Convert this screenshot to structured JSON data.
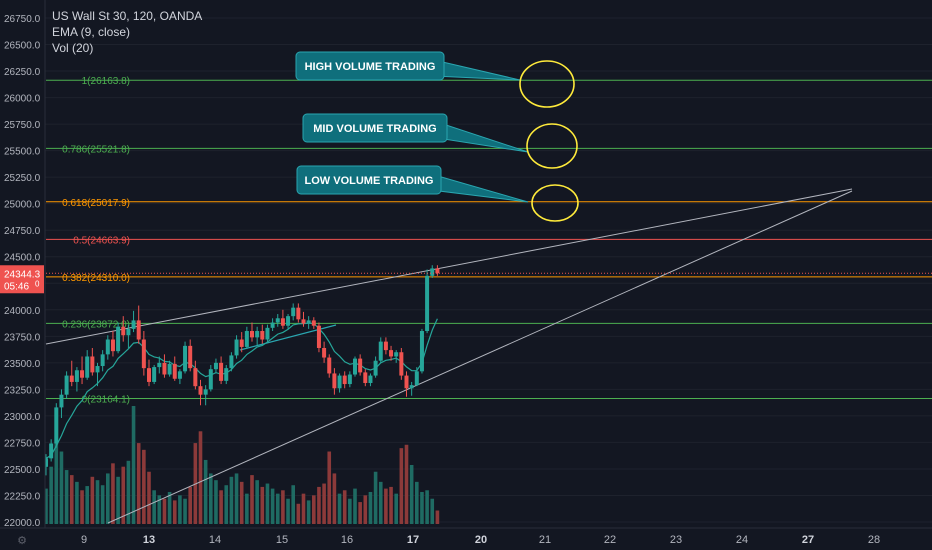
{
  "legend": {
    "symbol": "US Wall St 30, 120, OANDA",
    "ema": "EMA (9, close)",
    "vol": "Vol (20)"
  },
  "price_tag": {
    "price": "24344.3",
    "countdown": "05:46",
    "sub": "0"
  },
  "annotations": [
    {
      "label": "HIGH VOLUME TRADING"
    },
    {
      "label": "MID VOLUME TRADING"
    },
    {
      "label": "LOW VOLUME TRADING"
    }
  ],
  "colors": {
    "background": "#131722",
    "up": "#26a69a",
    "down": "#ef5350",
    "fib_green": "#4caf50",
    "fib_orange": "#ff9800",
    "fib_red": "#ef5350",
    "callout": "#0f6f7c",
    "circle": "#ffeb3b",
    "trendline": "#b2b5be"
  },
  "chart_data": {
    "type": "candlestick",
    "title": "US Wall St 30, 120, OANDA",
    "xlabel": "",
    "ylabel": "",
    "ylim": [
      22000,
      26750
    ],
    "y_ticks": [
      22000,
      22250,
      22500,
      22750,
      23000,
      23250,
      23500,
      23750,
      24000,
      24250,
      24500,
      24750,
      25000,
      25250,
      25500,
      25750,
      26000,
      26250,
      26500,
      26750
    ],
    "y_tick_labels": [
      "22000.0",
      "22250.0",
      "22500.0",
      "22750.0",
      "23000.0",
      "23250.0",
      "23500.0",
      "23750.0",
      "24000.0",
      "24250.0",
      "24500.0",
      "24750.0",
      "25000.0",
      "25250.0",
      "25500.0",
      "25750.0",
      "26000.0",
      "26250.0",
      "26500.0",
      "26750.0"
    ],
    "x_ticks": [
      "9",
      "13",
      "14",
      "15",
      "16",
      "17",
      "20",
      "21",
      "22",
      "23",
      "24",
      "27",
      "28"
    ],
    "fib_levels": [
      {
        "label": "1(26163.8)",
        "value": 26163.8,
        "color": "#4caf50"
      },
      {
        "label": "0.786(25521.8)",
        "value": 25521.8,
        "color": "#4caf50"
      },
      {
        "label": "0.618(25017.9)",
        "value": 25017.9,
        "color": "#ff9800"
      },
      {
        "label": "0.5(24663.9)",
        "value": 24663.9,
        "color": "#ef5350"
      },
      {
        "label": "0.382(24310.0)",
        "value": 24310.0,
        "color": "#ff9800"
      },
      {
        "label": "0.236(23872.0)",
        "value": 23872.0,
        "color": "#4caf50"
      },
      {
        "label": "0(23164.1)",
        "value": 23164.1,
        "color": "#4caf50"
      }
    ],
    "last_price": 24344.3,
    "candles": [
      {
        "o": 22520,
        "h": 22640,
        "l": 22440,
        "c": 22600
      },
      {
        "o": 22600,
        "h": 22780,
        "l": 22570,
        "c": 22740
      },
      {
        "o": 22740,
        "h": 23120,
        "l": 22700,
        "c": 23080
      },
      {
        "o": 23080,
        "h": 23250,
        "l": 22980,
        "c": 23200
      },
      {
        "o": 23200,
        "h": 23420,
        "l": 23160,
        "c": 23380
      },
      {
        "o": 23380,
        "h": 23520,
        "l": 23280,
        "c": 23320
      },
      {
        "o": 23320,
        "h": 23460,
        "l": 23230,
        "c": 23430
      },
      {
        "o": 23430,
        "h": 23560,
        "l": 23300,
        "c": 23360
      },
      {
        "o": 23360,
        "h": 23620,
        "l": 23340,
        "c": 23560
      },
      {
        "o": 23560,
        "h": 23640,
        "l": 23380,
        "c": 23410
      },
      {
        "o": 23410,
        "h": 23500,
        "l": 23280,
        "c": 23470
      },
      {
        "o": 23470,
        "h": 23620,
        "l": 23420,
        "c": 23580
      },
      {
        "o": 23580,
        "h": 23760,
        "l": 23530,
        "c": 23720
      },
      {
        "o": 23720,
        "h": 23800,
        "l": 23560,
        "c": 23610
      },
      {
        "o": 23610,
        "h": 23880,
        "l": 23590,
        "c": 23840
      },
      {
        "o": 23840,
        "h": 23940,
        "l": 23700,
        "c": 23760
      },
      {
        "o": 23760,
        "h": 23860,
        "l": 23640,
        "c": 23820
      },
      {
        "o": 23820,
        "h": 23990,
        "l": 23790,
        "c": 23900
      },
      {
        "o": 23900,
        "h": 24040,
        "l": 23680,
        "c": 23720
      },
      {
        "o": 23720,
        "h": 23800,
        "l": 23380,
        "c": 23450
      },
      {
        "o": 23450,
        "h": 23530,
        "l": 23280,
        "c": 23320
      },
      {
        "o": 23320,
        "h": 23480,
        "l": 23300,
        "c": 23460
      },
      {
        "o": 23460,
        "h": 23560,
        "l": 23400,
        "c": 23500
      },
      {
        "o": 23500,
        "h": 23580,
        "l": 23360,
        "c": 23390
      },
      {
        "o": 23390,
        "h": 23520,
        "l": 23370,
        "c": 23490
      },
      {
        "o": 23490,
        "h": 23560,
        "l": 23330,
        "c": 23350
      },
      {
        "o": 23350,
        "h": 23440,
        "l": 23300,
        "c": 23420
      },
      {
        "o": 23420,
        "h": 23700,
        "l": 23400,
        "c": 23660
      },
      {
        "o": 23660,
        "h": 23720,
        "l": 23420,
        "c": 23450
      },
      {
        "o": 23450,
        "h": 23520,
        "l": 23250,
        "c": 23280
      },
      {
        "o": 23280,
        "h": 23340,
        "l": 23100,
        "c": 23200
      },
      {
        "o": 23200,
        "h": 23290,
        "l": 23100,
        "c": 23250
      },
      {
        "o": 23250,
        "h": 23480,
        "l": 23230,
        "c": 23440
      },
      {
        "o": 23440,
        "h": 23540,
        "l": 23400,
        "c": 23500
      },
      {
        "o": 23500,
        "h": 23560,
        "l": 23300,
        "c": 23330
      },
      {
        "o": 23330,
        "h": 23480,
        "l": 23300,
        "c": 23450
      },
      {
        "o": 23450,
        "h": 23600,
        "l": 23420,
        "c": 23570
      },
      {
        "o": 23570,
        "h": 23760,
        "l": 23540,
        "c": 23720
      },
      {
        "o": 23720,
        "h": 23790,
        "l": 23600,
        "c": 23650
      },
      {
        "o": 23650,
        "h": 23840,
        "l": 23630,
        "c": 23800
      },
      {
        "o": 23800,
        "h": 23880,
        "l": 23700,
        "c": 23740
      },
      {
        "o": 23740,
        "h": 23840,
        "l": 23660,
        "c": 23800
      },
      {
        "o": 23800,
        "h": 23860,
        "l": 23680,
        "c": 23720
      },
      {
        "o": 23720,
        "h": 23860,
        "l": 23700,
        "c": 23830
      },
      {
        "o": 23830,
        "h": 23920,
        "l": 23800,
        "c": 23880
      },
      {
        "o": 23880,
        "h": 23960,
        "l": 23840,
        "c": 23920
      },
      {
        "o": 23920,
        "h": 24000,
        "l": 23820,
        "c": 23850
      },
      {
        "o": 23850,
        "h": 23960,
        "l": 23820,
        "c": 23940
      },
      {
        "o": 23940,
        "h": 24060,
        "l": 23900,
        "c": 24020
      },
      {
        "o": 24020,
        "h": 24060,
        "l": 23880,
        "c": 23910
      },
      {
        "o": 23910,
        "h": 23980,
        "l": 23840,
        "c": 23870
      },
      {
        "o": 23870,
        "h": 23940,
        "l": 23820,
        "c": 23900
      },
      {
        "o": 23900,
        "h": 23930,
        "l": 23820,
        "c": 23850
      },
      {
        "o": 23850,
        "h": 23880,
        "l": 23600,
        "c": 23640
      },
      {
        "o": 23640,
        "h": 23700,
        "l": 23500,
        "c": 23550
      },
      {
        "o": 23550,
        "h": 23580,
        "l": 23360,
        "c": 23400
      },
      {
        "o": 23400,
        "h": 23450,
        "l": 23200,
        "c": 23260
      },
      {
        "o": 23260,
        "h": 23400,
        "l": 23220,
        "c": 23380
      },
      {
        "o": 23380,
        "h": 23420,
        "l": 23260,
        "c": 23300
      },
      {
        "o": 23300,
        "h": 23420,
        "l": 23270,
        "c": 23390
      },
      {
        "o": 23390,
        "h": 23560,
        "l": 23370,
        "c": 23540
      },
      {
        "o": 23540,
        "h": 23580,
        "l": 23380,
        "c": 23410
      },
      {
        "o": 23410,
        "h": 23440,
        "l": 23280,
        "c": 23310
      },
      {
        "o": 23310,
        "h": 23400,
        "l": 23280,
        "c": 23380
      },
      {
        "o": 23380,
        "h": 23560,
        "l": 23360,
        "c": 23520
      },
      {
        "o": 23520,
        "h": 23740,
        "l": 23500,
        "c": 23700
      },
      {
        "o": 23700,
        "h": 23740,
        "l": 23580,
        "c": 23620
      },
      {
        "o": 23620,
        "h": 23660,
        "l": 23520,
        "c": 23560
      },
      {
        "o": 23560,
        "h": 23620,
        "l": 23500,
        "c": 23600
      },
      {
        "o": 23600,
        "h": 23640,
        "l": 23340,
        "c": 23380
      },
      {
        "o": 23380,
        "h": 23420,
        "l": 23180,
        "c": 23260
      },
      {
        "o": 23260,
        "h": 23320,
        "l": 23190,
        "c": 23290
      },
      {
        "o": 23290,
        "h": 23460,
        "l": 23280,
        "c": 23420
      },
      {
        "o": 23420,
        "h": 23820,
        "l": 23400,
        "c": 23800
      },
      {
        "o": 23800,
        "h": 24380,
        "l": 23780,
        "c": 24320
      },
      {
        "o": 24320,
        "h": 24420,
        "l": 24300,
        "c": 24390
      },
      {
        "o": 24390,
        "h": 24420,
        "l": 24320,
        "c": 24344
      }
    ],
    "volume": [
      42000,
      68000,
      100000,
      86000,
      64000,
      58000,
      50000,
      40000,
      45000,
      56000,
      52000,
      46000,
      60000,
      72000,
      56000,
      68000,
      75000,
      140000,
      96000,
      88000,
      62000,
      40000,
      34000,
      30000,
      38000,
      28000,
      34000,
      30000,
      44000,
      96000,
      110000,
      76000,
      60000,
      52000,
      40000,
      46000,
      56000,
      60000,
      50000,
      36000,
      58000,
      52000,
      44000,
      48000,
      42000,
      36000,
      40000,
      30000,
      46000,
      24000,
      36000,
      28000,
      34000,
      44000,
      48000,
      86000,
      60000,
      36000,
      40000,
      30000,
      42000,
      26000,
      34000,
      38000,
      62000,
      50000,
      42000,
      44000,
      36000,
      90000,
      94000,
      70000,
      50000,
      38000,
      40000,
      30000,
      16000
    ]
  }
}
